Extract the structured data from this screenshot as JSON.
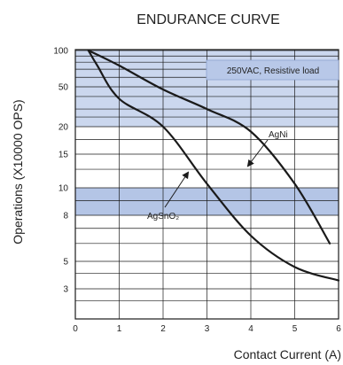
{
  "chart_data": {
    "type": "line",
    "title": "ENDURANCE CURVE",
    "xlabel": "Contact Current (A)",
    "ylabel": "Operations (X10000 OPS)",
    "xlim": [
      0,
      6
    ],
    "x_ticks": [
      "0",
      "1",
      "2",
      "3",
      "4",
      "5",
      "6"
    ],
    "y_tick_labels": [
      "100",
      "50",
      "20",
      "15",
      "10",
      "8",
      "5",
      "3"
    ],
    "annotation": "250VAC, Resistive load",
    "series": [
      {
        "name": "AgNi",
        "x": [
          0.3,
          1.0,
          2.0,
          3.0,
          4.0,
          5.0,
          5.8
        ],
        "y": [
          100,
          75,
          47,
          30,
          19,
          10.5,
          6
        ]
      },
      {
        "name": "AgSnO₂",
        "x": [
          0.3,
          0.5,
          1.0,
          2.0,
          3.0,
          4.0,
          5.0,
          6.0
        ],
        "y": [
          100,
          75,
          38,
          20,
          10.5,
          6.5,
          4.5,
          3.5
        ]
      }
    ],
    "colors": {
      "band": "#cbd7ee",
      "band_strong": "#b4c5e6",
      "line": "#1a1a1a",
      "grid": "#1a1a1a"
    }
  }
}
